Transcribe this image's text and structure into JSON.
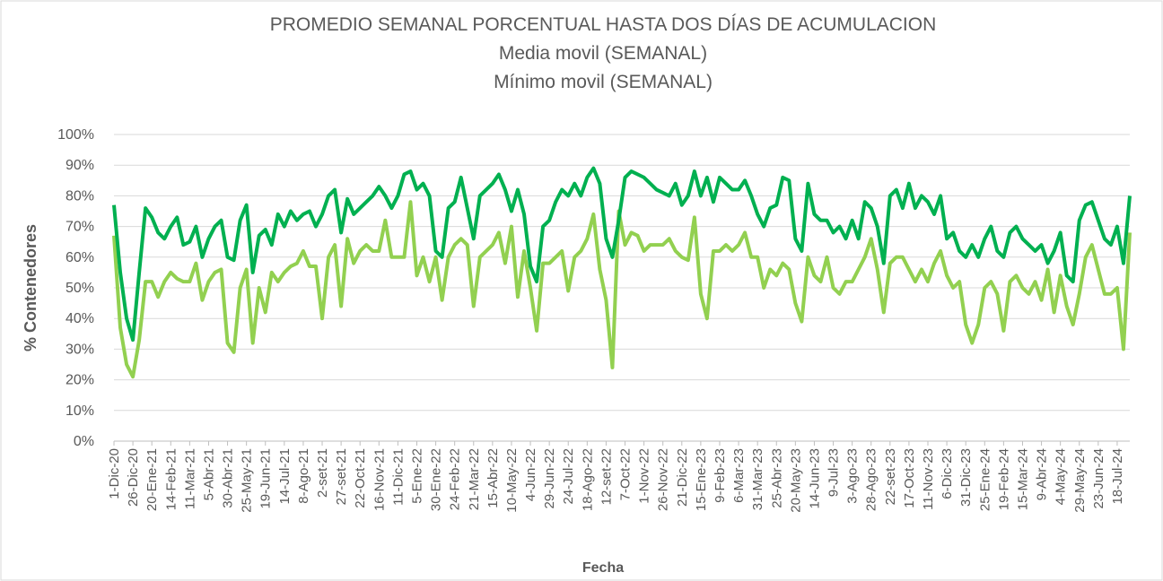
{
  "chart_data": {
    "type": "line",
    "title": "PROMEDIO SEMANAL PORCENTUAL HASTA DOS DÍAS DE    ACUMULACION",
    "x_label": "Fecha",
    "y_label": "% Contenedores",
    "categories": [
      "1-Dic-20",
      null,
      null,
      "26-Dic-20",
      null,
      null,
      "20-Ene-21",
      null,
      null,
      "14-Feb-21",
      null,
      null,
      "11-Mar-21",
      null,
      null,
      "5-Abr-21",
      null,
      null,
      "30-Abr-21",
      null,
      null,
      "25-May-21",
      null,
      null,
      "19-Jun-21",
      null,
      null,
      "14-Jul-21",
      null,
      null,
      "8-Ago-21",
      null,
      null,
      "2-set-21",
      null,
      null,
      "27-set-21",
      null,
      null,
      "22-Oct-21",
      null,
      null,
      "16-Nov-21",
      null,
      null,
      "11-Dic-21",
      null,
      null,
      "5-Ene-22",
      null,
      null,
      "30-Ene-22",
      null,
      null,
      "24-Feb-22",
      null,
      null,
      "21-Mar-22",
      null,
      null,
      "15-Abr-22",
      null,
      null,
      "10-May-22",
      null,
      null,
      "4-Jun-22",
      null,
      null,
      "29-Jun-22",
      null,
      null,
      "24-Jul-22",
      null,
      null,
      "18-Ago-22",
      null,
      null,
      "12-set-22",
      null,
      null,
      "7-Oct-22",
      null,
      null,
      "1-Nov-22",
      null,
      null,
      "26-Nov-22",
      null,
      null,
      "21-Dic-22",
      null,
      null,
      "15-Ene-23",
      null,
      null,
      "9-Feb-23",
      null,
      null,
      "6-Mar-23",
      null,
      null,
      "31-Mar-23",
      null,
      null,
      "25-Abr-23",
      null,
      null,
      "20-May-23",
      null,
      null,
      "14-Jun-23",
      null,
      null,
      "9-Jul-23",
      null,
      null,
      "3-Ago-23",
      null,
      null,
      "28-Ago-23",
      null,
      null,
      "22-set-23",
      null,
      null,
      "17-Oct-23",
      null,
      null,
      "11-Nov-23",
      null,
      null,
      "6-Dic-23",
      null,
      null,
      "31-Dic-23",
      null,
      null,
      "25-Ene-24",
      null,
      null,
      "19-Feb-24",
      null,
      null,
      "15-Mar-24",
      null,
      null,
      "9-Abr-24",
      null,
      null,
      "4-May-24",
      null,
      null,
      "29-May-24",
      null,
      null,
      "23-Jun-24",
      null,
      null,
      "18-Jul-24",
      null,
      null
    ],
    "series": [
      {
        "name": "Media movil (SEMANAL)",
        "color": "#00b050",
        "values": [
          77,
          55,
          40,
          33,
          55,
          76,
          73,
          68,
          66,
          70,
          73,
          64,
          65,
          70,
          60,
          66,
          70,
          72,
          60,
          59,
          72,
          77,
          55,
          67,
          69,
          64,
          74,
          70,
          75,
          72,
          74,
          75,
          70,
          74,
          80,
          82,
          68,
          79,
          74,
          76,
          78,
          80,
          83,
          80,
          76,
          80,
          87,
          88,
          82,
          84,
          80,
          62,
          60,
          76,
          78,
          86,
          76,
          66,
          80,
          82,
          84,
          87,
          82,
          75,
          82,
          74,
          57,
          52,
          70,
          72,
          78,
          82,
          80,
          84,
          80,
          86,
          89,
          84,
          66,
          60,
          72,
          86,
          88,
          87,
          86,
          84,
          82,
          81,
          80,
          84,
          77,
          80,
          88,
          80,
          86,
          78,
          86,
          84,
          82,
          82,
          85,
          80,
          74,
          70,
          76,
          77,
          86,
          85,
          66,
          62,
          84,
          74,
          72,
          72,
          68,
          70,
          66,
          72,
          66,
          78,
          76,
          70,
          58,
          80,
          82,
          76,
          84,
          76,
          80,
          78,
          74,
          80,
          66,
          68,
          62,
          60,
          64,
          60,
          66,
          70,
          62,
          60,
          68,
          70,
          66,
          64,
          62,
          64,
          58,
          62,
          68,
          54,
          52,
          72,
          77,
          78,
          72,
          66,
          64,
          70,
          58,
          80
        ]
      },
      {
        "name": "Mínimo movil (SEMANAL)",
        "color": "#92d050",
        "values": [
          67,
          37,
          25,
          21,
          33,
          52,
          52,
          47,
          52,
          55,
          53,
          52,
          52,
          58,
          46,
          52,
          55,
          56,
          32,
          29,
          50,
          56,
          32,
          50,
          42,
          55,
          52,
          55,
          57,
          58,
          62,
          57,
          57,
          40,
          60,
          64,
          44,
          66,
          58,
          62,
          64,
          62,
          62,
          72,
          60,
          60,
          60,
          78,
          54,
          60,
          52,
          60,
          46,
          60,
          64,
          66,
          64,
          44,
          60,
          62,
          64,
          68,
          58,
          70,
          47,
          62,
          50,
          36,
          58,
          58,
          60,
          62,
          49,
          60,
          62,
          66,
          74,
          56,
          46,
          24,
          75,
          64,
          68,
          67,
          62,
          64,
          64,
          64,
          66,
          62,
          60,
          59,
          73,
          48,
          40,
          62,
          62,
          64,
          62,
          64,
          68,
          60,
          60,
          50,
          56,
          54,
          58,
          56,
          45,
          39,
          60,
          54,
          52,
          60,
          50,
          48,
          52,
          52,
          56,
          60,
          66,
          56,
          42,
          58,
          60,
          60,
          56,
          52,
          56,
          52,
          58,
          62,
          54,
          50,
          52,
          38,
          32,
          38,
          50,
          52,
          48,
          36,
          52,
          54,
          50,
          48,
          52,
          46,
          56,
          42,
          54,
          44,
          38,
          48,
          60,
          64,
          56,
          48,
          48,
          50,
          30,
          68
        ]
      }
    ],
    "ylim": [
      0,
      100
    ],
    "yticks": [
      {
        "value": 0,
        "label": "0%"
      },
      {
        "value": 10,
        "label": "10%"
      },
      {
        "value": 20,
        "label": "20%"
      },
      {
        "value": 30,
        "label": "30%"
      },
      {
        "value": 40,
        "label": "40%"
      },
      {
        "value": 50,
        "label": "50%"
      },
      {
        "value": 60,
        "label": "60%"
      },
      {
        "value": 70,
        "label": "70%"
      },
      {
        "value": 80,
        "label": "80%"
      },
      {
        "value": 90,
        "label": "90%"
      },
      {
        "value": 100,
        "label": "100%"
      }
    ],
    "grid": true
  }
}
